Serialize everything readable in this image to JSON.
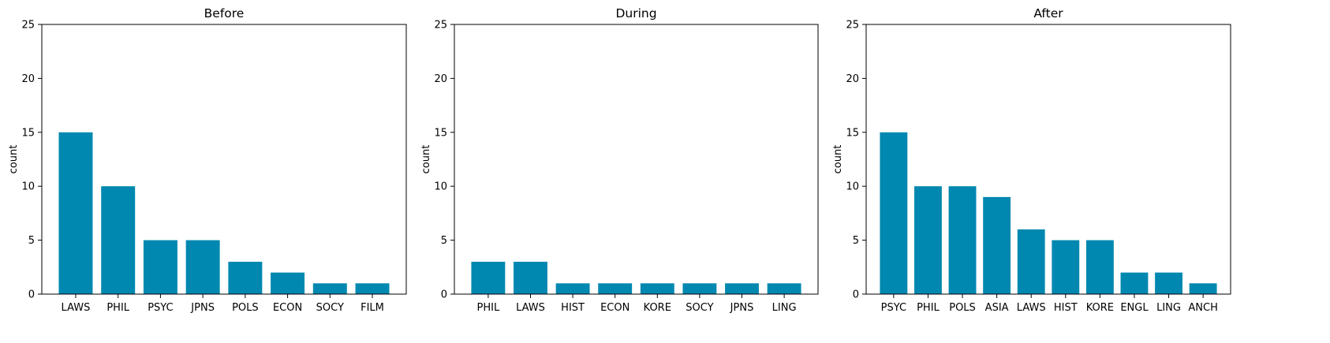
{
  "figure": {
    "bar_color": "#0088B0",
    "background": "#ffffff"
  },
  "chart_data": [
    {
      "type": "bar",
      "title": "Before",
      "ylabel": "count",
      "xlabel": "",
      "ylim": [
        0,
        25
      ],
      "yticks": [
        0,
        5,
        10,
        15,
        20,
        25
      ],
      "grid": false,
      "categories": [
        "LAWS",
        "PHIL",
        "PSYC",
        "JPNS",
        "POLS",
        "ECON",
        "SOCY",
        "FILM"
      ],
      "values": [
        15,
        10,
        5,
        5,
        3,
        2,
        1,
        1
      ]
    },
    {
      "type": "bar",
      "title": "During",
      "ylabel": "count",
      "xlabel": "",
      "ylim": [
        0,
        25
      ],
      "yticks": [
        0,
        5,
        10,
        15,
        20,
        25
      ],
      "grid": false,
      "categories": [
        "PHIL",
        "LAWS",
        "HIST",
        "ECON",
        "KORE",
        "SOCY",
        "JPNS",
        "LING"
      ],
      "values": [
        3,
        3,
        1,
        1,
        1,
        1,
        1,
        1
      ]
    },
    {
      "type": "bar",
      "title": "After",
      "ylabel": "count",
      "xlabel": "",
      "ylim": [
        0,
        25
      ],
      "yticks": [
        0,
        5,
        10,
        15,
        20,
        25
      ],
      "grid": false,
      "categories": [
        "PSYC",
        "PHIL",
        "POLS",
        "ASIA",
        "LAWS",
        "HIST",
        "KORE",
        "ENGL",
        "LING",
        "ANCH"
      ],
      "values": [
        15,
        10,
        10,
        9,
        6,
        5,
        5,
        2,
        2,
        1
      ]
    }
  ]
}
